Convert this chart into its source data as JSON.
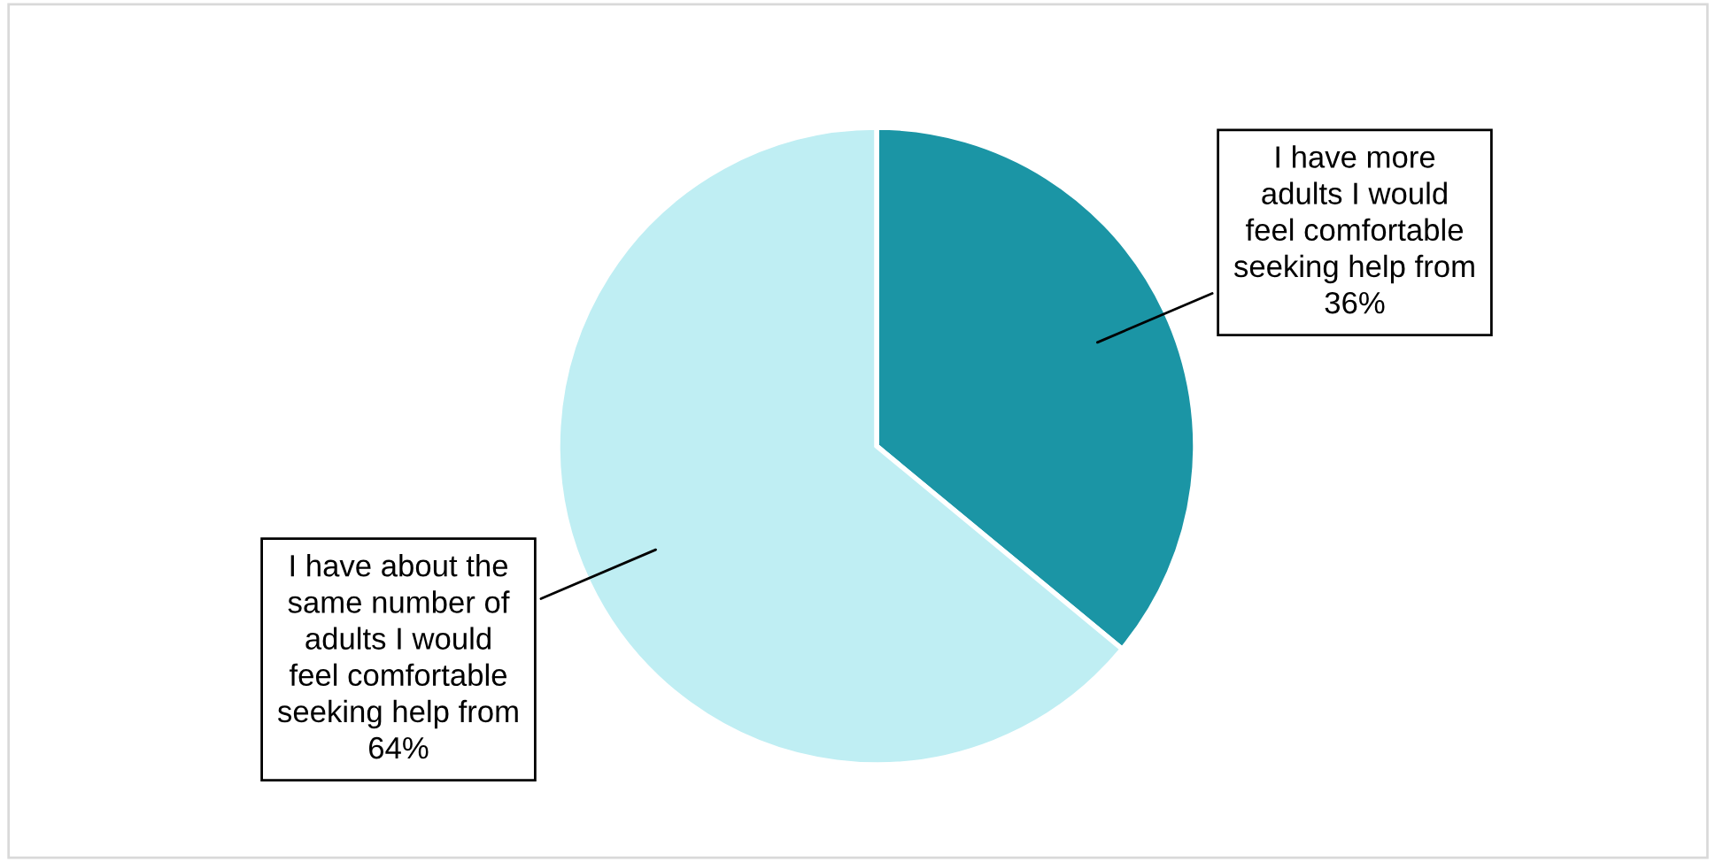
{
  "chart_data": {
    "type": "pie",
    "categories": [
      "I have more\nadults I would\nfeel comfortable\nseeking help from",
      "I have about the\nsame number of\nadults I would\nfeel comfortable\nseeking help from"
    ],
    "values": [
      36,
      64
    ],
    "value_labels": [
      "36%",
      "64%"
    ],
    "colors": [
      "#1b95a5",
      "#bfeef3"
    ],
    "legend": false
  }
}
